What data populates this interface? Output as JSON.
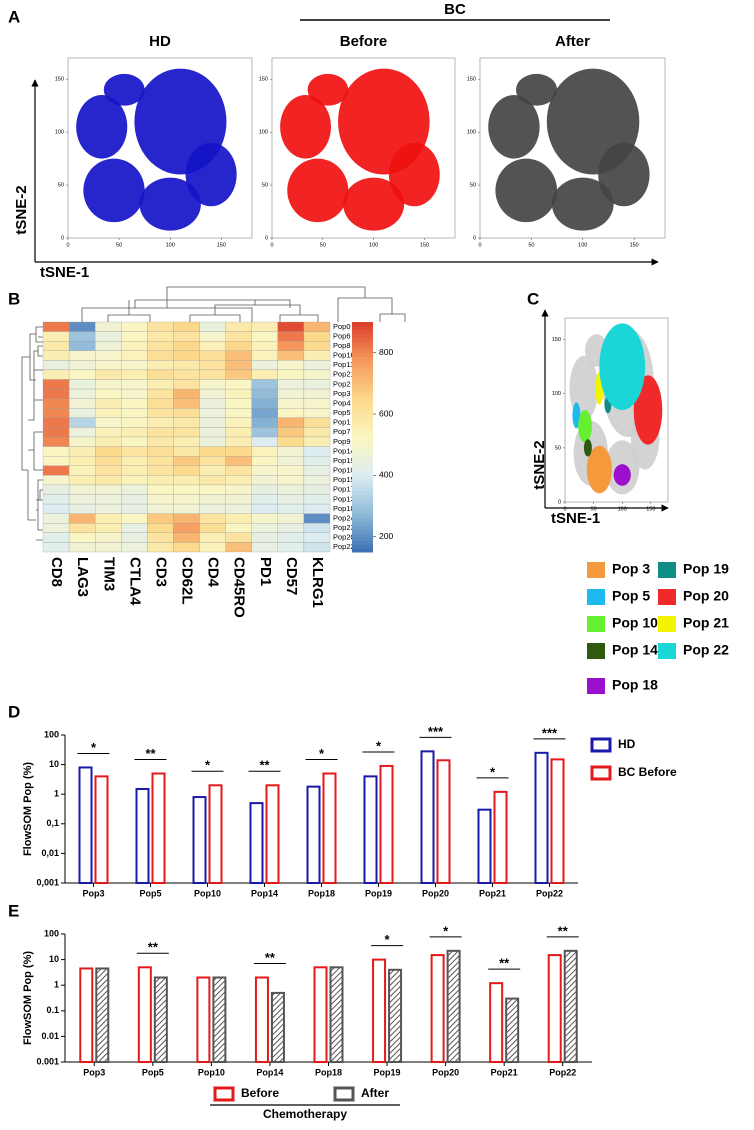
{
  "chart_data": [
    {
      "type": "scatter",
      "panel": "A",
      "group_label": "BC",
      "subplots": [
        {
          "title": "HD",
          "color": "#1414c8"
        },
        {
          "title": "Before",
          "color": "#f01010"
        },
        {
          "title": "After",
          "color": "#444444"
        }
      ],
      "xlabel": "tSNE-1",
      "ylabel": "tSNE-2",
      "xlim": [
        0,
        180
      ],
      "ylim": [
        0,
        170
      ],
      "xticks": [
        0,
        50,
        100,
        150
      ],
      "yticks": [
        0,
        50,
        100,
        150
      ]
    },
    {
      "type": "heatmap",
      "panel": "B",
      "columns": [
        "CD8",
        "LAG3",
        "TIM3",
        "CTLA4",
        "CD3",
        "CD62L",
        "CD4",
        "CD45RO",
        "PD1",
        "CD57",
        "KLRG1"
      ],
      "rows": [
        "Pop0",
        "Pop6",
        "Pop8",
        "Pop16",
        "Pop11",
        "Pop21",
        "Pop2",
        "Pop3",
        "Pop4",
        "Pop5",
        "Pop1",
        "Pop7",
        "Pop9",
        "Pop14",
        "Pop19",
        "Pop10",
        "Pop15",
        "Pop17",
        "Pop13",
        "Pop18",
        "Pop24",
        "Pop23",
        "Pop20",
        "Pop22"
      ],
      "values": [
        [
          820,
          200,
          480,
          520,
          600,
          650,
          450,
          580,
          560,
          880,
          720
        ],
        [
          560,
          300,
          450,
          520,
          580,
          600,
          500,
          600,
          520,
          820,
          650
        ],
        [
          580,
          280,
          470,
          540,
          600,
          650,
          550,
          650,
          540,
          780,
          640
        ],
        [
          560,
          500,
          500,
          540,
          620,
          650,
          620,
          700,
          540,
          700,
          560
        ],
        [
          450,
          480,
          500,
          500,
          560,
          580,
          600,
          700,
          460,
          500,
          460
        ],
        [
          560,
          520,
          580,
          560,
          620,
          600,
          600,
          680,
          560,
          520,
          500
        ],
        [
          820,
          450,
          500,
          500,
          560,
          600,
          500,
          520,
          300,
          460,
          450
        ],
        [
          820,
          460,
          520,
          500,
          600,
          720,
          480,
          540,
          280,
          480,
          480
        ],
        [
          800,
          480,
          560,
          520,
          620,
          700,
          460,
          520,
          260,
          500,
          500
        ],
        [
          800,
          450,
          540,
          520,
          600,
          620,
          460,
          520,
          240,
          520,
          500
        ],
        [
          820,
          340,
          500,
          520,
          560,
          580,
          460,
          540,
          260,
          720,
          620
        ],
        [
          820,
          460,
          540,
          560,
          600,
          600,
          460,
          560,
          300,
          680,
          580
        ],
        [
          800,
          500,
          560,
          520,
          580,
          560,
          460,
          560,
          400,
          640,
          560
        ],
        [
          520,
          560,
          640,
          600,
          620,
          580,
          640,
          640,
          540,
          480,
          400
        ],
        [
          520,
          560,
          620,
          560,
          600,
          680,
          600,
          700,
          520,
          480,
          420
        ],
        [
          820,
          540,
          600,
          560,
          600,
          640,
          560,
          600,
          500,
          500,
          440
        ],
        [
          500,
          560,
          580,
          540,
          560,
          560,
          580,
          560,
          480,
          500,
          460
        ],
        [
          440,
          480,
          480,
          460,
          520,
          520,
          520,
          500,
          440,
          460,
          440
        ],
        [
          420,
          460,
          460,
          440,
          500,
          500,
          480,
          480,
          420,
          440,
          420
        ],
        [
          400,
          440,
          460,
          440,
          480,
          480,
          460,
          460,
          400,
          420,
          400
        ],
        [
          460,
          720,
          560,
          520,
          680,
          720,
          600,
          560,
          500,
          480,
          200
        ],
        [
          460,
          600,
          560,
          440,
          640,
          760,
          620,
          520,
          460,
          440,
          380
        ],
        [
          420,
          520,
          500,
          440,
          600,
          720,
          560,
          600,
          440,
          420,
          400
        ],
        [
          420,
          480,
          480,
          460,
          580,
          640,
          540,
          700,
          440,
          420,
          380
        ]
      ],
      "colorbar_lim": [
        150,
        900
      ],
      "colorbar_ticks": [
        200,
        400,
        600,
        800
      ],
      "colormap": [
        "#3b6fb1",
        "#8fbad8",
        "#dcecf1",
        "#fbf6c2",
        "#fcd88a",
        "#f59a5c",
        "#dc3c2c"
      ]
    },
    {
      "type": "scatter",
      "panel": "C",
      "xlabel": "tSNE-1",
      "ylabel": "tSNE-2",
      "xlim": [
        0,
        180
      ],
      "ylim": [
        0,
        170
      ],
      "xticks": [
        0,
        50,
        100,
        150
      ],
      "yticks": [
        0,
        50,
        100,
        150
      ],
      "series": [
        {
          "name": "Pop 3",
          "color": "#f59a3c"
        },
        {
          "name": "Pop 5",
          "color": "#1fb8ef"
        },
        {
          "name": "Pop 10",
          "color": "#66ee33"
        },
        {
          "name": "Pop 14",
          "color": "#2d5a0e"
        },
        {
          "name": "Pop 18",
          "color": "#9a10cc"
        },
        {
          "name": "Pop 19",
          "color": "#0e8c86"
        },
        {
          "name": "Pop 20",
          "color": "#f02a2a"
        },
        {
          "name": "Pop 21",
          "color": "#f4f400"
        },
        {
          "name": "Pop 22",
          "color": "#1ad6d6"
        }
      ]
    },
    {
      "type": "bar",
      "panel": "D",
      "ylabel": "FlowSOM Pop (%)",
      "log": true,
      "categories": [
        "Pop3",
        "Pop5",
        "Pop10",
        "Pop14",
        "Pop18",
        "Pop19",
        "Pop20",
        "Pop21",
        "Pop22"
      ],
      "series": [
        {
          "name": "HD",
          "color": "#1a1aa8",
          "values": [
            8,
            1.5,
            0.8,
            0.5,
            1.8,
            4,
            28,
            0.3,
            25
          ]
        },
        {
          "name": "BC Before",
          "color": "#e41a1a",
          "values": [
            4,
            5,
            2,
            2,
            5,
            9,
            14,
            1.2,
            15
          ]
        }
      ],
      "annotations": [
        {
          "index": 0,
          "text": "*"
        },
        {
          "index": 1,
          "text": "**"
        },
        {
          "index": 2,
          "text": "*"
        },
        {
          "index": 3,
          "text": "**"
        },
        {
          "index": 4,
          "text": "*"
        },
        {
          "index": 5,
          "text": "*"
        },
        {
          "index": 6,
          "text": "***"
        },
        {
          "index": 7,
          "text": "*"
        },
        {
          "index": 8,
          "text": "***"
        }
      ],
      "ylim": [
        0.001,
        100
      ],
      "yticks": [
        {
          "value": 0.001,
          "label": "0,001"
        },
        {
          "value": 0.01,
          "label": "0,01"
        },
        {
          "value": 0.1,
          "label": "0,1"
        },
        1,
        10,
        100
      ]
    },
    {
      "type": "bar",
      "panel": "E",
      "ylabel": "FlowSOM Pop (%)",
      "log": true,
      "xlabel": "Chemotherapy",
      "categories": [
        "Pop3",
        "Pop5",
        "Pop10",
        "Pop14",
        "Pop18",
        "Pop19",
        "Pop20",
        "Pop21",
        "Pop22"
      ],
      "series": [
        {
          "name": "Before",
          "color": "#e41a1a",
          "values": [
            4.5,
            5,
            2,
            2,
            5,
            10,
            15,
            1.2,
            15
          ]
        },
        {
          "name": "After",
          "color": "#555555",
          "hatch": true,
          "values": [
            4.5,
            2,
            2,
            0.5,
            5,
            4,
            22,
            0.3,
            22
          ]
        }
      ],
      "annotations": [
        {
          "index": 1,
          "text": "**"
        },
        {
          "index": 3,
          "text": "**"
        },
        {
          "index": 5,
          "text": "*"
        },
        {
          "index": 6,
          "text": "*"
        },
        {
          "index": 7,
          "text": "**"
        },
        {
          "index": 8,
          "text": "**"
        }
      ],
      "ylim": [
        0.001,
        100
      ],
      "yticks": [
        0.001,
        0.01,
        0.1,
        1,
        10,
        100
      ]
    }
  ]
}
